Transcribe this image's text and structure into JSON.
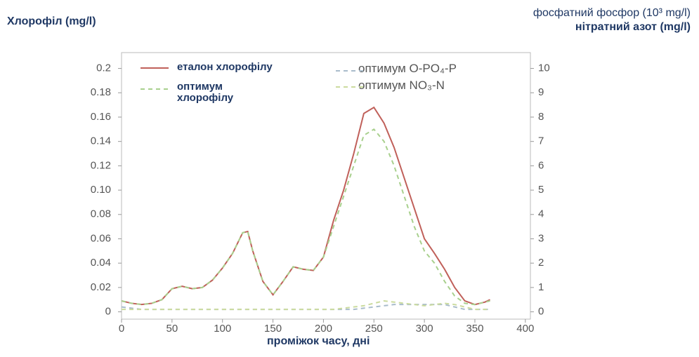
{
  "chart_data": {
    "type": "line",
    "y_title": "Хлорофіл (mg/l)",
    "y2_title": "фосфатний фосфор (10³ mg/l)",
    "y2_title_2": "нітратний азот (mg/l)",
    "x_title": "проміжок часу, дні",
    "x": [
      0,
      10,
      20,
      30,
      40,
      50,
      60,
      70,
      80,
      90,
      100,
      110,
      120,
      125,
      130,
      140,
      150,
      160,
      170,
      180,
      190,
      200,
      210,
      220,
      230,
      240,
      250,
      260,
      270,
      280,
      290,
      300,
      310,
      320,
      330,
      340,
      350,
      360,
      365
    ],
    "series": [
      {
        "name": "еталон хлорофілу",
        "color": "#c0605a",
        "dash": false,
        "axis": "y",
        "values": [
          0.009,
          0.007,
          0.006,
          0.007,
          0.01,
          0.019,
          0.021,
          0.019,
          0.02,
          0.026,
          0.036,
          0.048,
          0.065,
          0.066,
          0.05,
          0.025,
          0.014,
          0.025,
          0.037,
          0.035,
          0.034,
          0.045,
          0.075,
          0.1,
          0.13,
          0.163,
          0.168,
          0.155,
          0.135,
          0.11,
          0.085,
          0.06,
          0.048,
          0.035,
          0.02,
          0.009,
          0.006,
          0.008,
          0.01
        ]
      },
      {
        "name": "оптимум хлорофілу",
        "color": "#a8d08d",
        "dash": true,
        "axis": "y",
        "values": [
          0.009,
          0.007,
          0.006,
          0.007,
          0.01,
          0.019,
          0.021,
          0.019,
          0.02,
          0.026,
          0.036,
          0.048,
          0.065,
          0.066,
          0.05,
          0.025,
          0.014,
          0.025,
          0.037,
          0.035,
          0.034,
          0.045,
          0.07,
          0.095,
          0.12,
          0.145,
          0.15,
          0.14,
          0.12,
          0.095,
          0.07,
          0.05,
          0.04,
          0.025,
          0.013,
          0.007,
          0.006,
          0.008,
          0.009
        ]
      },
      {
        "name": "оптимум O-PO₄-P",
        "color": "#a9bccb",
        "dash": true,
        "axis": "y2",
        "values": [
          0.2,
          0.15,
          0.1,
          0.1,
          0.1,
          0.1,
          0.1,
          0.1,
          0.1,
          0.1,
          0.1,
          0.1,
          0.1,
          0.1,
          0.1,
          0.1,
          0.1,
          0.1,
          0.1,
          0.1,
          0.1,
          0.1,
          0.1,
          0.1,
          0.1,
          0.15,
          0.2,
          0.25,
          0.3,
          0.3,
          0.3,
          0.3,
          0.3,
          0.3,
          0.2,
          0.1,
          0.1,
          0.1,
          0.1
        ]
      },
      {
        "name": "оптимум NO₃-N",
        "color": "#cbdb9e",
        "dash": true,
        "axis": "y2",
        "values": [
          0.1,
          0.1,
          0.1,
          0.1,
          0.1,
          0.1,
          0.1,
          0.1,
          0.1,
          0.1,
          0.1,
          0.1,
          0.1,
          0.1,
          0.1,
          0.1,
          0.1,
          0.1,
          0.1,
          0.1,
          0.1,
          0.1,
          0.1,
          0.15,
          0.2,
          0.25,
          0.35,
          0.45,
          0.4,
          0.35,
          0.3,
          0.25,
          0.3,
          0.35,
          0.3,
          0.2,
          0.1,
          0.1,
          0.1
        ]
      }
    ],
    "xlim": [
      0,
      405
    ],
    "xticks": [
      0,
      50,
      100,
      150,
      200,
      250,
      300,
      350,
      400
    ],
    "ylim": [
      -0.006,
      0.213
    ],
    "yticks": [
      0,
      0.02,
      0.04,
      0.06,
      0.08,
      {
        "value": 0.1,
        "label": "0.10"
      },
      0.12,
      0.14,
      0.16,
      0.18,
      0.2
    ],
    "y2lim": [
      -0.3,
      10.65
    ],
    "y2ticks": [
      0,
      1,
      2,
      3,
      4,
      5,
      6,
      7,
      8,
      9,
      10
    ]
  }
}
